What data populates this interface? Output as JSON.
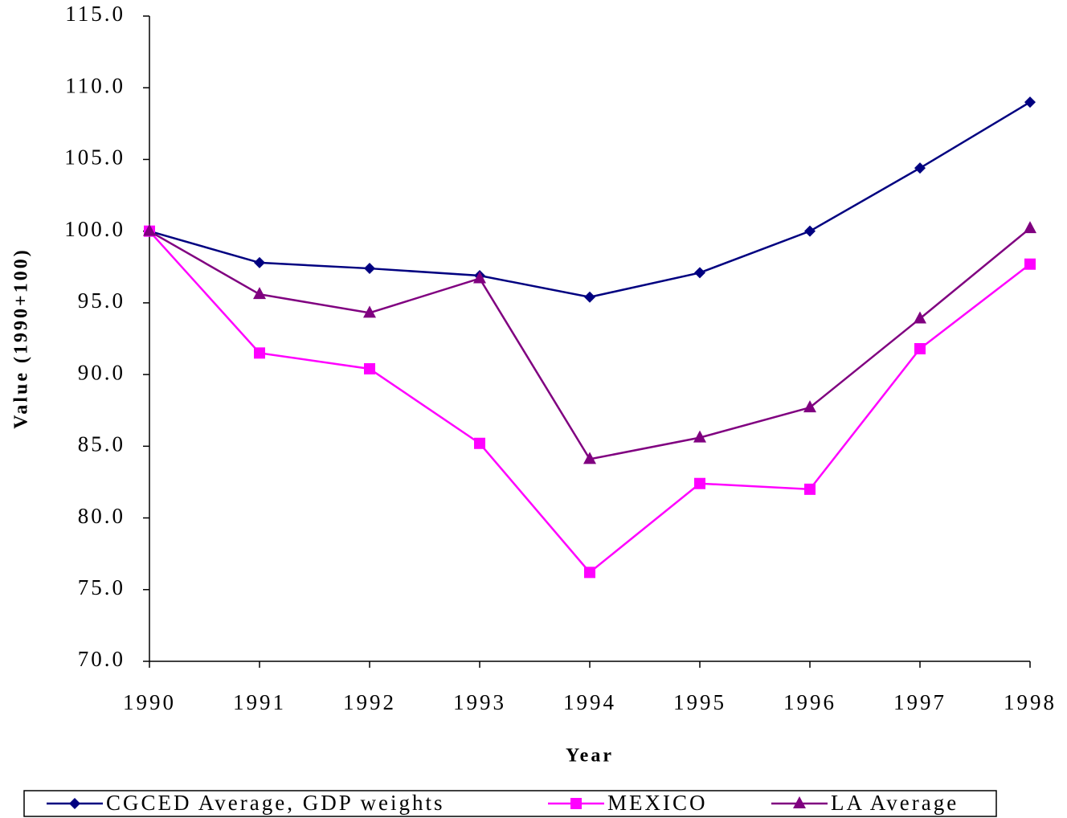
{
  "chart_data": {
    "type": "line",
    "y_label": "Value (1990+100)",
    "x_label": "Year",
    "categories": [
      "1990",
      "1991",
      "1992",
      "1993",
      "1994",
      "1995",
      "1996",
      "1997",
      "1998"
    ],
    "series": [
      {
        "name": "CGCED Average, GDP weights",
        "color": "#000080",
        "marker": "diamond",
        "values": [
          100.0,
          97.8,
          97.4,
          96.9,
          95.4,
          97.1,
          100.0,
          104.4,
          109.0
        ]
      },
      {
        "name": "MEXICO",
        "color": "#ff00ff",
        "marker": "square",
        "values": [
          100.0,
          91.5,
          90.4,
          85.2,
          76.2,
          82.4,
          82.0,
          91.8,
          97.7
        ]
      },
      {
        "name": "LA Average",
        "color": "#800080",
        "marker": "triangle",
        "values": [
          100.0,
          95.6,
          94.3,
          96.7,
          84.1,
          85.6,
          87.7,
          93.9,
          100.2
        ]
      }
    ],
    "ylim": [
      70,
      115
    ],
    "yticks": [
      {
        "value": 70,
        "label": "70.0"
      },
      {
        "value": 75,
        "label": "75.0"
      },
      {
        "value": 80,
        "label": "80.0"
      },
      {
        "value": 85,
        "label": "85.0"
      },
      {
        "value": 90,
        "label": "90.0"
      },
      {
        "value": 95,
        "label": "95.0"
      },
      {
        "value": 100,
        "label": "100.0"
      },
      {
        "value": 105,
        "label": "105.0"
      },
      {
        "value": 110,
        "label": "110.0"
      },
      {
        "value": 115,
        "label": "115.0"
      }
    ],
    "legend": "bottom"
  }
}
